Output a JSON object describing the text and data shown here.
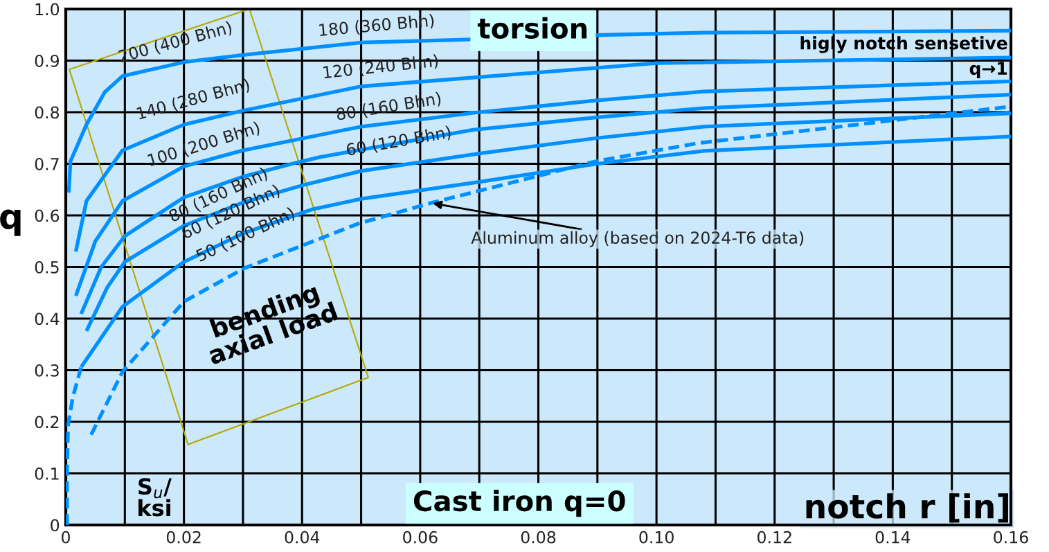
{
  "chart_data": {
    "type": "line",
    "xlabel": "notch r [in]",
    "ylabel": "q",
    "xlim": [
      0,
      0.16
    ],
    "ylim": [
      0,
      1
    ],
    "xticks": [
      0,
      {
        "value": 0.01,
        "label": null
      },
      0.02,
      {
        "value": 0.03,
        "label": null
      },
      0.04,
      {
        "value": 0.05,
        "label": null
      },
      0.06,
      {
        "value": 0.07,
        "label": null
      },
      0.08,
      {
        "value": 0.09,
        "label": null
      },
      {
        "value": 0.1,
        "label": "0.10"
      },
      {
        "value": 0.11,
        "label": null
      },
      0.12,
      {
        "value": 0.13,
        "label": null
      },
      0.14,
      {
        "value": 0.15,
        "label": null
      },
      0.16
    ],
    "yticks": [
      0,
      0.1,
      0.2,
      0.3,
      0.4,
      0.5,
      0.6,
      0.7,
      0.8,
      0.9,
      {
        "value": 1,
        "label": "1.0"
      }
    ],
    "grid": true,
    "marker": "none",
    "line_style": "solid",
    "series": [
      {
        "color": "#0090ff",
        "x": [
          0.0005,
          0.0008,
          0.0035,
          0.0066,
          0.0096,
          0.02,
          0.03,
          0.05,
          0.066,
          0.092,
          0.107,
          0.16
        ],
        "values": [
          0.644,
          0.705,
          0.776,
          0.839,
          0.87,
          0.897,
          0.911,
          0.935,
          0.94,
          0.95,
          0.954,
          0.958
        ]
      },
      {
        "color": "#0090ff",
        "x": [
          0.0017,
          0.0035,
          0.0096,
          0.02,
          0.03,
          0.05,
          0.1,
          0.16
        ],
        "values": [
          0.53,
          0.628,
          0.726,
          0.776,
          0.803,
          0.85,
          0.895,
          0.906
        ]
      },
      {
        "color": "#0090ff",
        "x": [
          0.0017,
          0.005,
          0.0096,
          0.02,
          0.03,
          0.04,
          0.05,
          0.07,
          0.09,
          0.108,
          0.16
        ],
        "values": [
          0.444,
          0.55,
          0.628,
          0.695,
          0.726,
          0.749,
          0.772,
          0.8,
          0.823,
          0.84,
          0.86
        ]
      },
      {
        "color": "#0090ff",
        "x": [
          0.0026,
          0.006,
          0.01,
          0.02,
          0.03,
          0.0383,
          0.043,
          0.069,
          0.09,
          0.108,
          0.16
        ],
        "values": [
          0.409,
          0.5,
          0.56,
          0.635,
          0.675,
          0.7,
          0.713,
          0.766,
          0.79,
          0.808,
          0.834
        ]
      },
      {
        "color": "#0090ff",
        "x": [
          0.0035,
          0.007,
          0.01,
          0.02,
          0.03,
          0.0403,
          0.05,
          0.07,
          0.09,
          0.108,
          0.16
        ],
        "values": [
          0.376,
          0.46,
          0.51,
          0.58,
          0.625,
          0.659,
          0.686,
          0.72,
          0.75,
          0.772,
          0.798
        ]
      },
      {
        "color": "#0090ff",
        "x": [
          0.0026,
          0.0096,
          0.02,
          0.03,
          0.0418,
          0.05,
          0.07,
          0.09,
          0.108,
          0.16
        ],
        "values": [
          0.306,
          0.423,
          0.51,
          0.565,
          0.612,
          0.632,
          0.665,
          0.7,
          0.725,
          0.753
        ]
      },
      {
        "color": "#0090ff",
        "line_style": "dashed",
        "x": [
          0.0002,
          0.0002,
          0.0004,
          0.0012,
          0.0026
        ],
        "values": [
          0,
          0.1,
          0.195,
          0.248,
          0.306
        ]
      },
      {
        "color": "#0090ff",
        "line_style": "dashed",
        "x": [
          0.0043,
          0.0096,
          0.02,
          0.0303,
          0.0495,
          0.0618,
          0.0898,
          0.107,
          0.16
        ],
        "values": [
          0.175,
          0.297,
          0.433,
          0.498,
          0.584,
          0.624,
          0.705,
          0.74,
          0.811
        ]
      }
    ],
    "annotations": [
      "200 (400 Bhn)",
      "180 (360 Bhn)",
      "140 (280 Bhn)",
      "120 (240 Bhn)",
      "100 (200 Bhn)",
      "80 (160 Bhn)",
      "60 (120 Bhn)",
      "80 (160 Bhn)",
      "60 (120 Bhn)",
      "50 (100 Bhn)",
      {
        "text": "Aluminum alloy (based on 2024-T6 data)",
        "x": 0.0618,
        "y": 0.624
      },
      "S$_{u}$/\nksi",
      "bending\naxial load",
      "torsion",
      "higly notch sensetive\nq→1",
      "Cast iron q=0"
    ]
  }
}
